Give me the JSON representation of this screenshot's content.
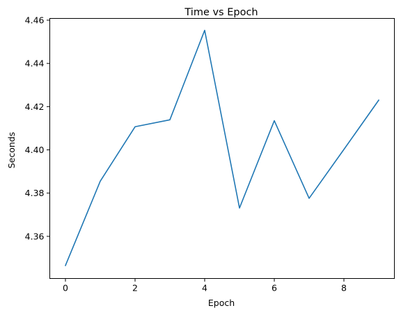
{
  "chart_data": {
    "type": "line",
    "title": "Time vs Epoch",
    "xlabel": "Epoch",
    "ylabel": "Seconds",
    "x": [
      0,
      1,
      2,
      3,
      4,
      5,
      6,
      7,
      8,
      9
    ],
    "series": [
      {
        "values": [
          4.3465,
          4.3855,
          4.4107,
          4.4139,
          4.4553,
          4.3731,
          4.4135,
          4.3776,
          4.4002,
          4.423
        ],
        "color": "#1f77b4"
      }
    ],
    "xlim": [
      -0.45,
      9.45
    ],
    "ylim": [
      4.3405,
      4.4608
    ],
    "xticks": [
      0,
      2,
      4,
      6,
      8
    ],
    "xtick_labels": [
      "0",
      "2",
      "4",
      "6",
      "8"
    ],
    "yticks": [
      4.36,
      4.38,
      4.4,
      4.42,
      4.44,
      4.46
    ],
    "ytick_labels": [
      "4.36",
      "4.38",
      "4.40",
      "4.42",
      "4.44",
      "4.46"
    ],
    "grid": false,
    "legend": "none"
  }
}
